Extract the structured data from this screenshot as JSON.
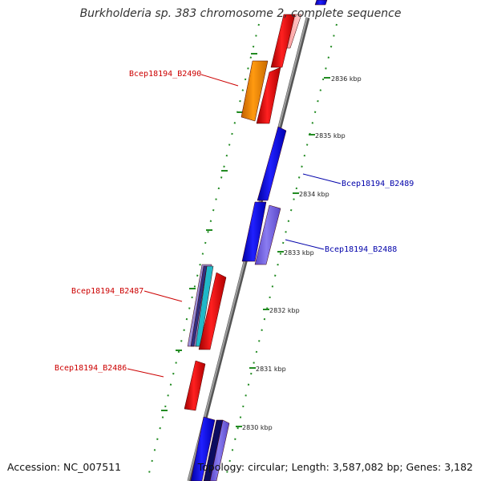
{
  "title": "Burkholderia sp. 383 chromosome 2, complete sequence",
  "footer": {
    "accession": "Accession: NC_007511",
    "summary": "Topology: circular; Length: 3,587,082 bp; Genes: 3,182"
  },
  "tick_labels": [
    "2836 kbp",
    "2835 kbp",
    "2834 kbp",
    "2833 kbp",
    "2832 kbp",
    "2831 kbp",
    "2830 kbp"
  ],
  "gene_labels": [
    {
      "text": "Bcep18194_B2490",
      "color": "#cc0000"
    },
    {
      "text": "Bcep18194_B2489",
      "color": "#0000aa"
    },
    {
      "text": "Bcep18194_B2488",
      "color": "#0000aa"
    },
    {
      "text": "Bcep18194_B2487",
      "color": "#cc0000"
    },
    {
      "text": "Bcep18194_B2486",
      "color": "#cc0000"
    }
  ],
  "colors": {
    "forward_gene": "#ff0000",
    "reverse_gene": "#0000ff",
    "highlight_gene": "#ff8c00",
    "pale_gene": "#7b68ee",
    "backbone": "#777777",
    "dots": "#228b22"
  }
}
